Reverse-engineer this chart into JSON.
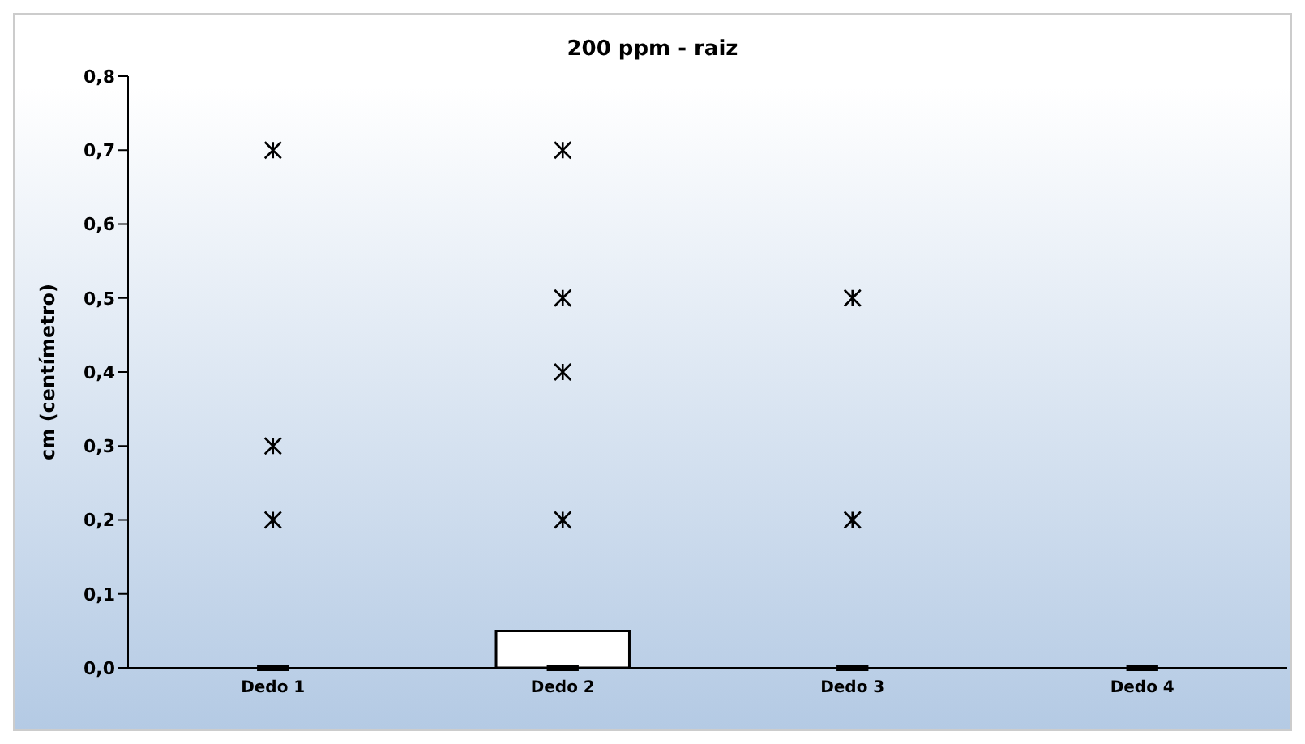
{
  "chart_data": {
    "type": "box",
    "title": "200 ppm - raiz",
    "ylabel": "cm (centímetro)",
    "categories": [
      "Dedo 1",
      "Dedo 2",
      "Dedo 3",
      "Dedo 4"
    ],
    "boxes": [
      {
        "low": 0,
        "q1": 0,
        "median": 0,
        "q3": 0,
        "high": 0
      },
      {
        "low": 0,
        "q1": 0,
        "median": 0,
        "q3": 0.05,
        "high": 0.05
      },
      {
        "low": 0,
        "q1": 0,
        "median": 0,
        "q3": 0,
        "high": 0
      },
      {
        "low": 0,
        "q1": 0,
        "median": 0,
        "q3": 0,
        "high": 0
      }
    ],
    "series": [
      {
        "type": "scatter",
        "color": "#000000",
        "x": [
          "Dedo 1",
          "Dedo 1",
          "Dedo 1",
          "Dedo 2",
          "Dedo 2",
          "Dedo 2",
          "Dedo 2",
          "Dedo 3",
          "Dedo 3"
        ],
        "values": [
          0.2,
          0.3,
          0.7,
          0.2,
          0.4,
          0.5,
          0.7,
          0.2,
          0.5
        ]
      }
    ],
    "ylim": [
      0,
      0.8
    ],
    "yticks": [
      {
        "value": 0,
        "label": "0,0"
      },
      {
        "value": 0.1,
        "label": "0,1"
      },
      {
        "value": 0.2,
        "label": "0,2"
      },
      {
        "value": 0.3,
        "label": "0,3"
      },
      {
        "value": 0.4,
        "label": "0,4"
      },
      {
        "value": 0.5,
        "label": "0,5"
      },
      {
        "value": 0.6,
        "label": "0,6"
      },
      {
        "value": 0.7,
        "label": "0,7"
      },
      {
        "value": 0.8,
        "label": "0,8"
      }
    ],
    "colors": [
      "#000000",
      "#ffffff",
      "#000000",
      "#000000"
    ],
    "marker": "cross",
    "grid": false,
    "legend": false
  }
}
